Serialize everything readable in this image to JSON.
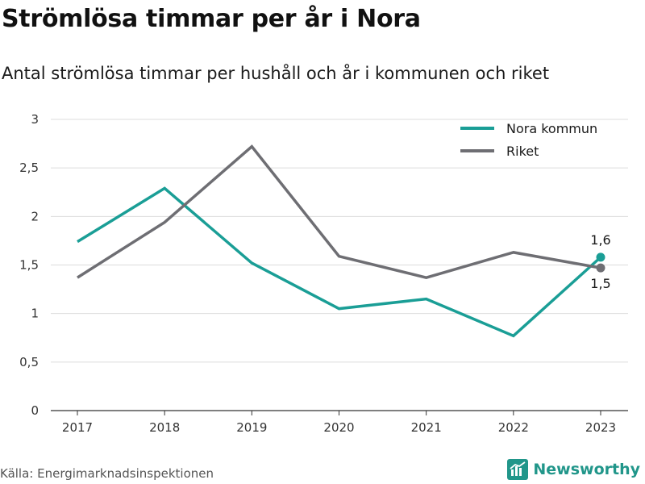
{
  "title": "Strömlösa timmar per år i Nora",
  "subtitle": "Antal strömlösa timmar per hushåll och år i kommunen och riket",
  "source": "Källa: Energimarknadsinspektionen",
  "brand": {
    "name": "Newsworthy",
    "icon": "newsworthy-logo-icon",
    "color": "#21968a"
  },
  "chart_data": {
    "type": "line",
    "x": [
      "2017",
      "2018",
      "2019",
      "2020",
      "2021",
      "2022",
      "2023"
    ],
    "ylim": [
      0,
      3
    ],
    "yticks": [
      0,
      0.5,
      1,
      1.5,
      2,
      2.5,
      3
    ],
    "ytick_labels": [
      "0",
      "0,5",
      "1",
      "1,5",
      "2",
      "2,5",
      "3"
    ],
    "grid": true,
    "legend_position": "top-right",
    "series": [
      {
        "name": "Nora kommun",
        "color": "#1a9e96",
        "values": [
          1.74,
          2.29,
          1.52,
          1.05,
          1.15,
          0.77,
          1.58
        ],
        "end_label": "1,6"
      },
      {
        "name": "Riket",
        "color": "#6e6e73",
        "values": [
          1.37,
          1.94,
          2.72,
          1.59,
          1.37,
          1.63,
          1.47
        ],
        "end_label": "1,5"
      }
    ]
  }
}
